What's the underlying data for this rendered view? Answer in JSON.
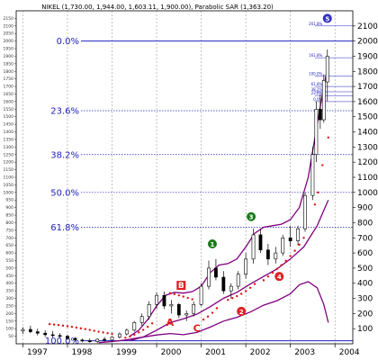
{
  "chart_data": {
    "type": "candlestick",
    "title": "NIKEL (1,730.00, 1,944.00, 1,603.11, 1,900.00), Parabolic SAR (1,363.20)",
    "x_ticks": [
      "1997",
      "1998",
      "1999",
      "2000",
      "2001",
      "2002",
      "2003",
      "2004"
    ],
    "y_ticks": [
      100,
      200,
      300,
      400,
      500,
      600,
      700,
      800,
      900,
      1000,
      1100,
      1200,
      1300,
      1400,
      1500,
      1600,
      1700,
      1800,
      1900,
      2000,
      2100
    ],
    "left_ticks": [
      50,
      100,
      150,
      200,
      250,
      300,
      350,
      400,
      450,
      500,
      550,
      600,
      650,
      700,
      750,
      800,
      850,
      900,
      950,
      1000,
      1050,
      1100,
      1150,
      1200,
      1250,
      1300,
      1350,
      1400,
      1450,
      1500,
      1550,
      1600,
      1650,
      1700,
      1750,
      1800,
      1850,
      1900,
      1950,
      2000,
      2050,
      2100,
      2150
    ],
    "ylim": [
      0,
      2200
    ],
    "fib_levels": [
      {
        "label": "0.0%",
        "value": 2000
      },
      {
        "label": "23.6%",
        "value": 1540
      },
      {
        "label": "38.2%",
        "value": 1250
      },
      {
        "label": "50.0%",
        "value": 1000
      },
      {
        "label": "61.8%",
        "value": 770
      },
      {
        "label": "100.0%",
        "value": 20
      }
    ],
    "ext_levels": [
      {
        "label": "261.8%",
        "value": 2100
      },
      {
        "label": "161.8%",
        "value": 1890
      },
      {
        "label": "100.0%",
        "value": 1770
      },
      {
        "label": "61.8%",
        "value": 1700
      },
      {
        "label": "38.2%",
        "value": 1665
      },
      {
        "label": "23.6%",
        "value": 1640
      },
      {
        "label": "0.0%",
        "value": 1600
      }
    ],
    "candles": [
      {
        "t": 1997.0,
        "o": 85,
        "h": 110,
        "l": 65,
        "c": 95
      },
      {
        "t": 1997.17,
        "o": 95,
        "h": 120,
        "l": 70,
        "c": 80
      },
      {
        "t": 1997.33,
        "o": 80,
        "h": 100,
        "l": 55,
        "c": 70
      },
      {
        "t": 1997.5,
        "o": 70,
        "h": 90,
        "l": 45,
        "c": 60
      },
      {
        "t": 1997.67,
        "o": 60,
        "h": 85,
        "l": 40,
        "c": 55
      },
      {
        "t": 1997.83,
        "o": 55,
        "h": 70,
        "l": 35,
        "c": 50
      },
      {
        "t": 1998.0,
        "o": 50,
        "h": 60,
        "l": 25,
        "c": 35
      },
      {
        "t": 1998.17,
        "o": 35,
        "h": 45,
        "l": 15,
        "c": 25
      },
      {
        "t": 1998.33,
        "o": 25,
        "h": 35,
        "l": 10,
        "c": 20
      },
      {
        "t": 1998.5,
        "o": 20,
        "h": 35,
        "l": 8,
        "c": 15
      },
      {
        "t": 1998.67,
        "o": 15,
        "h": 35,
        "l": 5,
        "c": 30
      },
      {
        "t": 1998.83,
        "o": 30,
        "h": 45,
        "l": 15,
        "c": 25
      },
      {
        "t": 1999.0,
        "o": 25,
        "h": 50,
        "l": 15,
        "c": 45
      },
      {
        "t": 1999.17,
        "o": 45,
        "h": 75,
        "l": 35,
        "c": 65
      },
      {
        "t": 1999.33,
        "o": 65,
        "h": 100,
        "l": 55,
        "c": 90
      },
      {
        "t": 1999.5,
        "o": 90,
        "h": 150,
        "l": 80,
        "c": 140
      },
      {
        "t": 1999.67,
        "o": 140,
        "h": 200,
        "l": 120,
        "c": 180
      },
      {
        "t": 1999.83,
        "o": 180,
        "h": 280,
        "l": 160,
        "c": 260
      },
      {
        "t": 2000.0,
        "o": 260,
        "h": 340,
        "l": 230,
        "c": 320
      },
      {
        "t": 2000.17,
        "o": 320,
        "h": 345,
        "l": 230,
        "c": 250
      },
      {
        "t": 2000.33,
        "o": 250,
        "h": 290,
        "l": 200,
        "c": 260
      },
      {
        "t": 2000.5,
        "o": 260,
        "h": 270,
        "l": 170,
        "c": 190
      },
      {
        "t": 2000.67,
        "o": 190,
        "h": 220,
        "l": 150,
        "c": 200
      },
      {
        "t": 2000.83,
        "o": 200,
        "h": 280,
        "l": 180,
        "c": 260
      },
      {
        "t": 2001.0,
        "o": 260,
        "h": 400,
        "l": 250,
        "c": 380
      },
      {
        "t": 2001.17,
        "o": 380,
        "h": 550,
        "l": 360,
        "c": 500
      },
      {
        "t": 2001.33,
        "o": 500,
        "h": 560,
        "l": 420,
        "c": 440
      },
      {
        "t": 2001.5,
        "o": 440,
        "h": 480,
        "l": 330,
        "c": 350
      },
      {
        "t": 2001.67,
        "o": 350,
        "h": 400,
        "l": 300,
        "c": 380
      },
      {
        "t": 2001.83,
        "o": 380,
        "h": 480,
        "l": 360,
        "c": 460
      },
      {
        "t": 2002.0,
        "o": 460,
        "h": 600,
        "l": 430,
        "c": 560
      },
      {
        "t": 2002.17,
        "o": 560,
        "h": 760,
        "l": 530,
        "c": 720
      },
      {
        "t": 2002.33,
        "o": 720,
        "h": 760,
        "l": 600,
        "c": 620
      },
      {
        "t": 2002.5,
        "o": 620,
        "h": 660,
        "l": 520,
        "c": 560
      },
      {
        "t": 2002.67,
        "o": 560,
        "h": 640,
        "l": 530,
        "c": 600
      },
      {
        "t": 2002.83,
        "o": 600,
        "h": 720,
        "l": 580,
        "c": 700
      },
      {
        "t": 2003.0,
        "o": 700,
        "h": 780,
        "l": 640,
        "c": 680
      },
      {
        "t": 2003.17,
        "o": 680,
        "h": 780,
        "l": 650,
        "c": 760
      },
      {
        "t": 2003.33,
        "o": 760,
        "h": 1000,
        "l": 740,
        "c": 980
      },
      {
        "t": 2003.5,
        "o": 980,
        "h": 1300,
        "l": 950,
        "c": 1250
      },
      {
        "t": 2003.58,
        "o": 1250,
        "h": 1600,
        "l": 1200,
        "c": 1550
      },
      {
        "t": 2003.67,
        "o": 1550,
        "h": 1650,
        "l": 1420,
        "c": 1480
      },
      {
        "t": 2003.75,
        "o": 1480,
        "h": 1780,
        "l": 1460,
        "c": 1740
      },
      {
        "t": 2003.83,
        "o": 1730,
        "h": 1944,
        "l": 1603,
        "c": 1900
      }
    ],
    "sar": [
      {
        "t": 1997.6,
        "v": 130
      },
      {
        "t": 1997.7,
        "v": 127
      },
      {
        "t": 1997.8,
        "v": 124
      },
      {
        "t": 1997.9,
        "v": 120
      },
      {
        "t": 1998.0,
        "v": 116
      },
      {
        "t": 1998.1,
        "v": 112
      },
      {
        "t": 1998.2,
        "v": 107
      },
      {
        "t": 1998.3,
        "v": 102
      },
      {
        "t": 1998.4,
        "v": 97
      },
      {
        "t": 1998.5,
        "v": 92
      },
      {
        "t": 1998.6,
        "v": 86
      },
      {
        "t": 1998.7,
        "v": 80
      },
      {
        "t": 1998.8,
        "v": 75
      },
      {
        "t": 1998.9,
        "v": 70
      },
      {
        "t": 1999.0,
        "v": 66
      },
      {
        "t": 1999.3,
        "v": 40
      },
      {
        "t": 1999.4,
        "v": 48
      },
      {
        "t": 1999.5,
        "v": 60
      },
      {
        "t": 1999.6,
        "v": 75
      },
      {
        "t": 1999.7,
        "v": 92
      },
      {
        "t": 1999.8,
        "v": 112
      },
      {
        "t": 1999.9,
        "v": 135
      },
      {
        "t": 2000.3,
        "v": 335
      },
      {
        "t": 2000.4,
        "v": 328
      },
      {
        "t": 2000.5,
        "v": 320
      },
      {
        "t": 2000.6,
        "v": 312
      },
      {
        "t": 2000.7,
        "v": 303
      },
      {
        "t": 2000.8,
        "v": 294
      },
      {
        "t": 2001.05,
        "v": 160
      },
      {
        "t": 2001.15,
        "v": 180
      },
      {
        "t": 2001.25,
        "v": 205
      },
      {
        "t": 2001.35,
        "v": 235
      },
      {
        "t": 2001.6,
        "v": 290
      },
      {
        "t": 2001.7,
        "v": 302
      },
      {
        "t": 2001.8,
        "v": 315
      },
      {
        "t": 2001.9,
        "v": 330
      },
      {
        "t": 2002.0,
        "v": 348
      },
      {
        "t": 2002.1,
        "v": 370
      },
      {
        "t": 2002.2,
        "v": 395
      },
      {
        "t": 2002.4,
        "v": 420
      },
      {
        "t": 2002.5,
        "v": 445
      },
      {
        "t": 2002.6,
        "v": 470
      },
      {
        "t": 2002.7,
        "v": 495
      },
      {
        "t": 2002.8,
        "v": 520
      },
      {
        "t": 2002.9,
        "v": 548
      },
      {
        "t": 2003.0,
        "v": 580
      },
      {
        "t": 2003.1,
        "v": 615
      },
      {
        "t": 2003.2,
        "v": 655
      },
      {
        "t": 2003.3,
        "v": 700
      },
      {
        "t": 2003.55,
        "v": 920
      },
      {
        "t": 2003.62,
        "v": 1000
      },
      {
        "t": 2003.72,
        "v": 1180
      },
      {
        "t": 2003.85,
        "v": 1363
      }
    ],
    "upper_band": [
      {
        "t": 1999.4,
        "v": 50
      },
      {
        "t": 1999.6,
        "v": 90
      },
      {
        "t": 1999.8,
        "v": 160
      },
      {
        "t": 2000.0,
        "v": 250
      },
      {
        "t": 2000.2,
        "v": 320
      },
      {
        "t": 2000.4,
        "v": 340
      },
      {
        "t": 2000.6,
        "v": 335
      },
      {
        "t": 2000.8,
        "v": 345
      },
      {
        "t": 2001.0,
        "v": 380
      },
      {
        "t": 2001.2,
        "v": 470
      },
      {
        "t": 2001.4,
        "v": 520
      },
      {
        "t": 2001.6,
        "v": 530
      },
      {
        "t": 2001.8,
        "v": 560
      },
      {
        "t": 2002.0,
        "v": 640
      },
      {
        "t": 2002.2,
        "v": 730
      },
      {
        "t": 2002.4,
        "v": 770
      },
      {
        "t": 2002.6,
        "v": 780
      },
      {
        "t": 2002.8,
        "v": 790
      },
      {
        "t": 2003.0,
        "v": 820
      },
      {
        "t": 2003.2,
        "v": 900
      },
      {
        "t": 2003.4,
        "v": 1100
      },
      {
        "t": 2003.6,
        "v": 1450
      },
      {
        "t": 2003.75,
        "v": 1700
      },
      {
        "t": 2003.85,
        "v": 1850
      }
    ],
    "lower_band": [
      {
        "t": 1999.4,
        "v": 20
      },
      {
        "t": 1999.7,
        "v": 45
      },
      {
        "t": 2000.0,
        "v": 90
      },
      {
        "t": 2000.3,
        "v": 140
      },
      {
        "t": 2000.6,
        "v": 165
      },
      {
        "t": 2000.9,
        "v": 195
      },
      {
        "t": 2001.2,
        "v": 245
      },
      {
        "t": 2001.5,
        "v": 300
      },
      {
        "t": 2001.8,
        "v": 340
      },
      {
        "t": 2002.1,
        "v": 395
      },
      {
        "t": 2002.4,
        "v": 445
      },
      {
        "t": 2002.7,
        "v": 495
      },
      {
        "t": 2003.0,
        "v": 560
      },
      {
        "t": 2003.3,
        "v": 640
      },
      {
        "t": 2003.6,
        "v": 780
      },
      {
        "t": 2003.85,
        "v": 950
      }
    ],
    "lower_curve": [
      {
        "t": 1998.7,
        "v": 8
      },
      {
        "t": 1999.0,
        "v": 15
      },
      {
        "t": 1999.3,
        "v": 25
      },
      {
        "t": 1999.6,
        "v": 40
      },
      {
        "t": 2000.0,
        "v": 58
      },
      {
        "t": 2000.3,
        "v": 68
      },
      {
        "t": 2000.6,
        "v": 60
      },
      {
        "t": 2000.9,
        "v": 75
      },
      {
        "t": 2001.2,
        "v": 110
      },
      {
        "t": 2001.5,
        "v": 150
      },
      {
        "t": 2001.8,
        "v": 175
      },
      {
        "t": 2002.1,
        "v": 210
      },
      {
        "t": 2002.4,
        "v": 255
      },
      {
        "t": 2002.7,
        "v": 285
      },
      {
        "t": 2003.0,
        "v": 330
      },
      {
        "t": 2003.2,
        "v": 390
      },
      {
        "t": 2003.4,
        "v": 410
      },
      {
        "t": 2003.6,
        "v": 370
      },
      {
        "t": 2003.75,
        "v": 260
      },
      {
        "t": 2003.85,
        "v": 140
      }
    ],
    "markers": [
      {
        "label": "1",
        "t": 2001.25,
        "v": 660,
        "color": "#1a7a1a"
      },
      {
        "label": "3",
        "t": 2002.12,
        "v": 840,
        "color": "#1a7a1a"
      },
      {
        "label": "5",
        "t": 2003.83,
        "v": 2150,
        "color": "#3030c0"
      },
      {
        "label": "2",
        "t": 2001.9,
        "v": 215,
        "color": "#e02020"
      },
      {
        "label": "4",
        "t": 2002.75,
        "v": 445,
        "color": "#e02020"
      }
    ],
    "letters": [
      {
        "label": "A",
        "t": 2000.3,
        "v": 120
      },
      {
        "label": "B",
        "t": 2000.55,
        "v": 380
      },
      {
        "label": "C",
        "t": 2000.9,
        "v": 80
      }
    ],
    "colors": {
      "fib": "#2020c0",
      "sar": "#e01010",
      "band": "#800080",
      "candle": "#000000",
      "marker_green": "#1a7a1a",
      "marker_red": "#e02020",
      "marker_blue": "#3030c0"
    }
  }
}
